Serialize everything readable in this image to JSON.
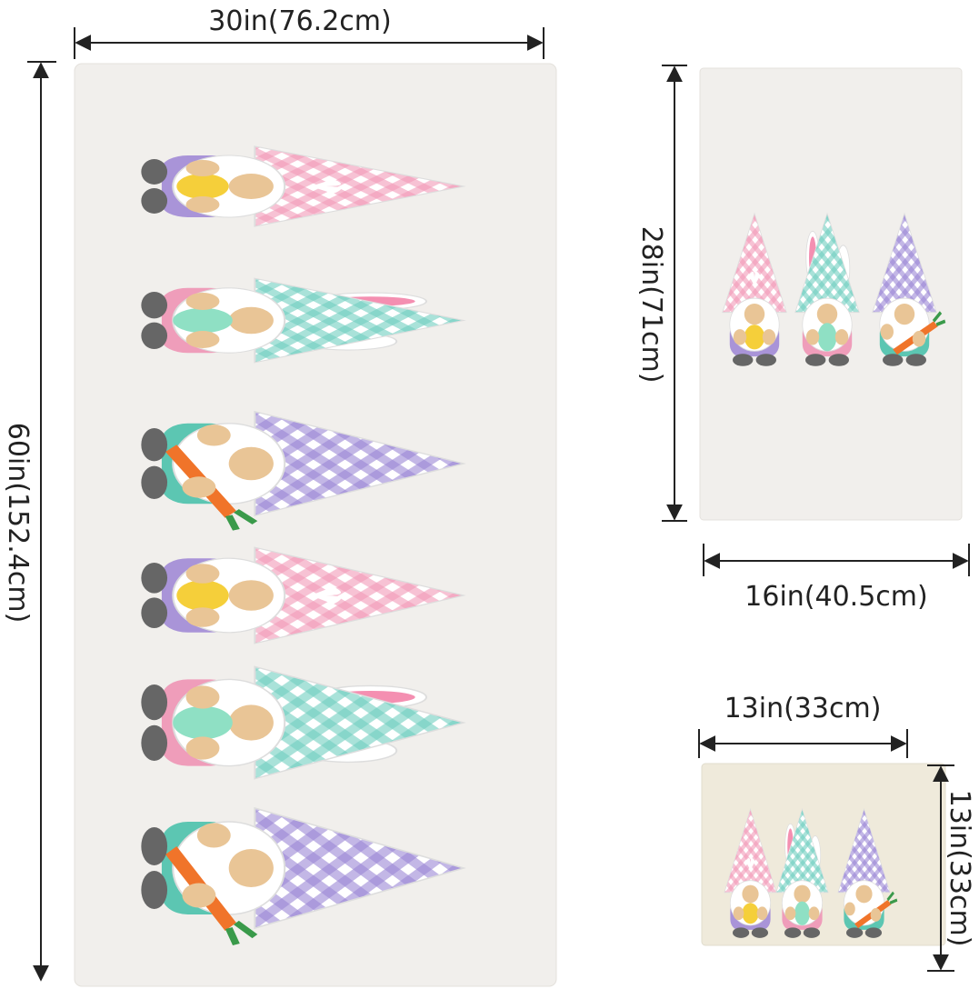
{
  "bath_towel": {
    "width_label": "30in(76.2cm)",
    "height_label": "60in(152.4cm)"
  },
  "hand_towel": {
    "height_label": "28in(71cm)",
    "width_label": "16in(40.5cm)"
  },
  "washcloth": {
    "width_label": "13in(33cm)",
    "height_label": "13in(33cm)"
  }
}
